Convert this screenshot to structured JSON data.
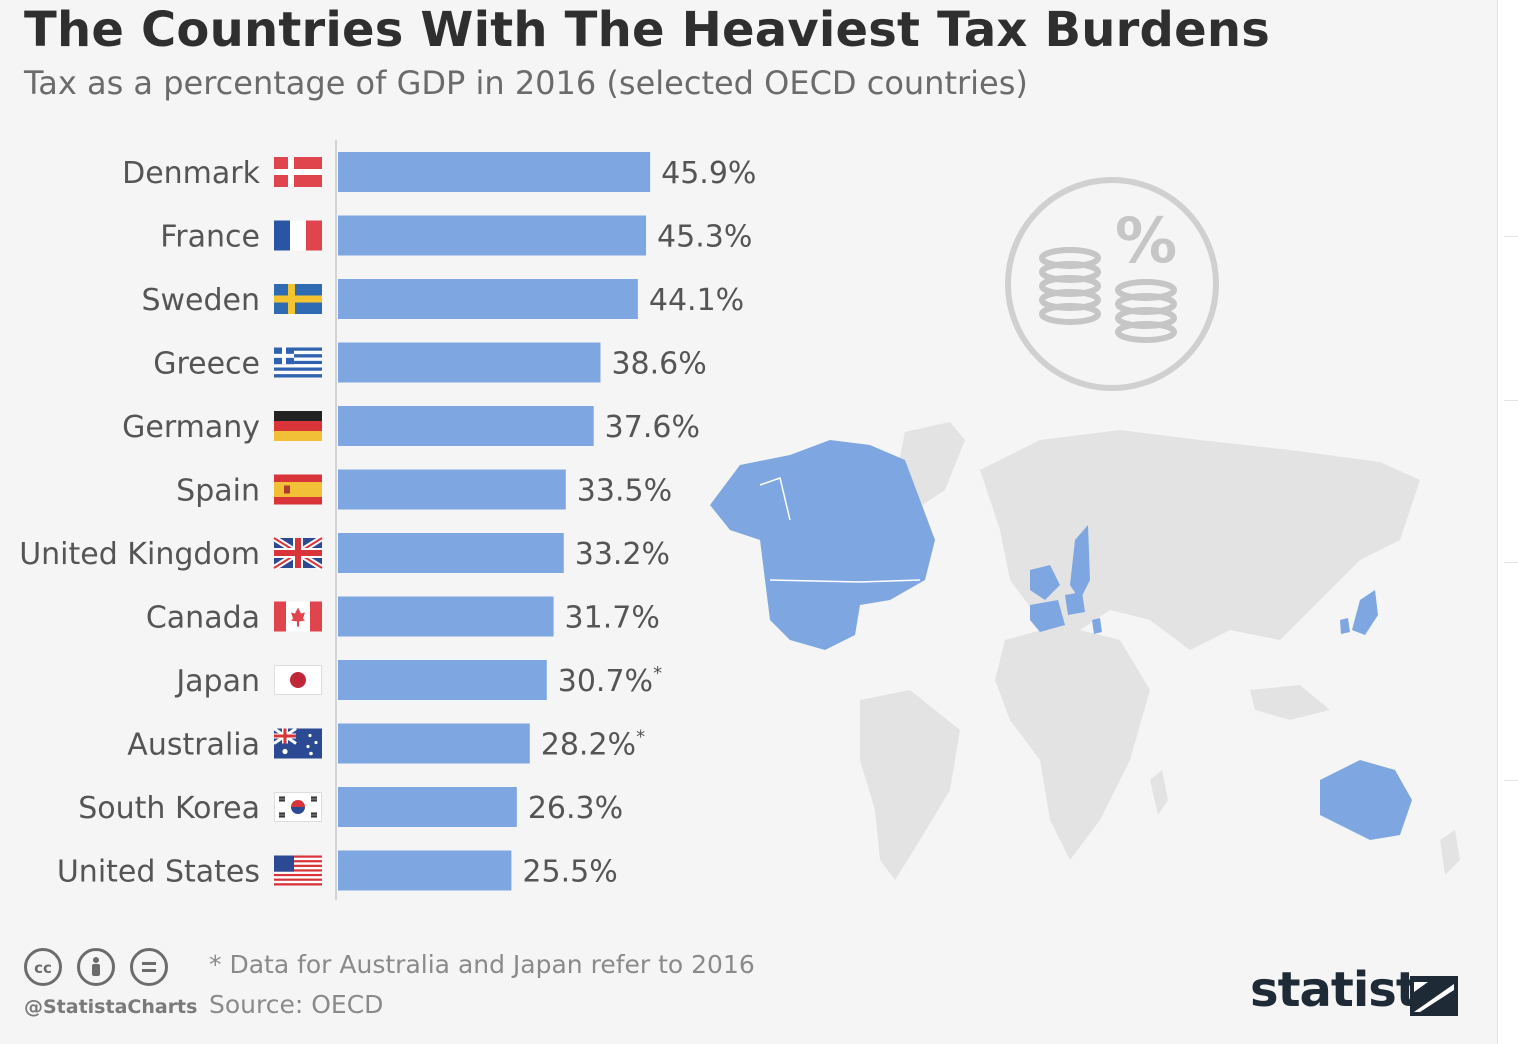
{
  "title": "The Countries With The Heaviest Tax Burdens",
  "subtitle": "Tax as a percentage of GDP in 2016 (selected OECD countries)",
  "footnote": "* Data for Australia and Japan refer to 2016",
  "source": "Source: OECD",
  "handle": "@StatistaCharts",
  "brand": "statista",
  "colors": {
    "bar": "#7ea6e0",
    "axis": "#c8c8c8",
    "label": "#555555",
    "map_land": "#e4e4e4",
    "map_highlight": "#7ea6e0",
    "icon": "#c9c9c9"
  },
  "icons": [
    "percent-coins-icon",
    "world-map",
    "cc-icon",
    "attribution-icon",
    "no-derivatives-icon",
    "statista-logo-icon"
  ],
  "chart_data": {
    "type": "bar",
    "orientation": "horizontal",
    "title": "The Countries With The Heaviest Tax Burdens",
    "subtitle": "Tax as a percentage of GDP in 2016 (selected OECD countries)",
    "xlabel": "",
    "ylabel": "",
    "xlim": [
      0,
      100
    ],
    "grid": false,
    "categories": [
      "Denmark",
      "France",
      "Sweden",
      "Greece",
      "Germany",
      "Spain",
      "United Kingdom",
      "Canada",
      "Japan",
      "Australia",
      "South Korea",
      "United States"
    ],
    "values": [
      45.9,
      45.3,
      44.1,
      38.6,
      37.6,
      33.5,
      33.2,
      31.7,
      30.7,
      28.2,
      26.3,
      25.5
    ],
    "value_labels": [
      "45.9%",
      "45.3%",
      "44.1%",
      "38.6%",
      "37.6%",
      "33.5%",
      "33.2%",
      "31.7%",
      "30.7%",
      "28.2%",
      "26.3%",
      "25.5%"
    ],
    "label_marks": [
      "",
      "",
      "",
      "",
      "",
      "",
      "",
      "",
      "*",
      "*",
      "",
      ""
    ],
    "flags": [
      "denmark",
      "france",
      "sweden",
      "greece",
      "germany",
      "spain",
      "united-kingdom",
      "canada",
      "japan",
      "australia",
      "south-korea",
      "united-states"
    ]
  }
}
